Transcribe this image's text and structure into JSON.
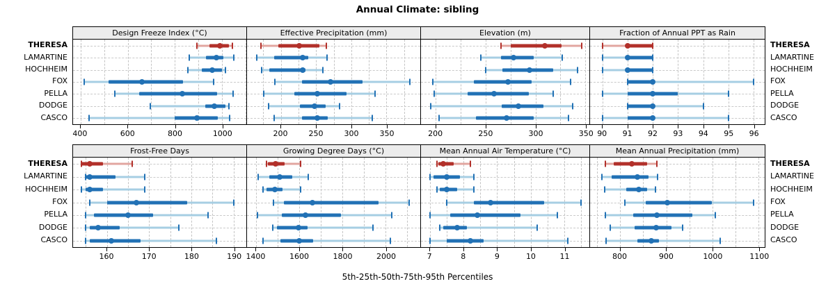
{
  "title": "Annual Climate: sibling",
  "caption": "5th-25th-50th-75th-95th Percentiles",
  "focus_series": "THERESA",
  "colors": {
    "focus": "#b2302a",
    "focus_light": "#e2a6a0",
    "other": "#2171b5",
    "other_light": "#a6cee3",
    "header_bg": "#ececec",
    "grid": "#c6c6c6",
    "border": "#000000"
  },
  "chart_data": {
    "type": "dotplot",
    "subtype": "percentile-whisker-trellis",
    "percentiles": [
      5,
      25,
      50,
      75,
      95
    ],
    "categories": [
      "THERESA",
      "LAMARTINE",
      "HOCHHEIM",
      "FOX",
      "PELLA",
      "DODGE",
      "CASCO"
    ],
    "layout": {
      "rows": 2,
      "cols": 4,
      "grid_on": true,
      "labels_both_sides": true
    },
    "panels": [
      {
        "title": "Design Freeze Index (°C)",
        "xlim": [
          368,
          1103
        ],
        "ticks": [
          400,
          600,
          800,
          1000
        ],
        "grid": [
          400,
          500,
          600,
          700,
          800,
          900,
          1000,
          1100
        ],
        "series": [
          {
            "name": "THERESA",
            "values": [
              893,
              947,
              991,
              1030,
              1043
            ]
          },
          {
            "name": "LAMARTINE",
            "values": [
              862,
              932,
              976,
              1007,
              1049
            ]
          },
          {
            "name": "HOCHHEIM",
            "values": [
              856,
              915,
              959,
              1000,
              1015
            ]
          },
          {
            "name": "FOX",
            "values": [
              415,
              518,
              659,
              833,
              964
            ]
          },
          {
            "name": "PELLA",
            "values": [
              545,
              649,
              830,
              978,
              1046
            ]
          },
          {
            "name": "DODGE",
            "values": [
              697,
              930,
              966,
              1015,
              1030
            ]
          },
          {
            "name": "CASCO",
            "values": [
              436,
              799,
              894,
              981,
              1032
            ]
          }
        ]
      },
      {
        "title": "Effective Precipitation (mm)",
        "xlim": [
          152,
          398
        ],
        "ticks": [
          200,
          250,
          300,
          350
        ],
        "grid": [
          175,
          200,
          225,
          250,
          275,
          300,
          325,
          350,
          375
        ],
        "series": [
          {
            "name": "THERESA",
            "values": [
              172,
              196,
              226,
              255,
              265
            ]
          },
          {
            "name": "LAMARTINE",
            "values": [
              166,
              191,
              231,
              239,
              266
            ]
          },
          {
            "name": "HOCHHEIM",
            "values": [
              173,
              184,
              231,
              235,
              260
            ]
          },
          {
            "name": "FOX",
            "values": [
              192,
              230,
              271,
              316,
              383
            ]
          },
          {
            "name": "PELLA",
            "values": [
              176,
              219,
              252,
              293,
              334
            ]
          },
          {
            "name": "DODGE",
            "values": [
              183,
              227,
              248,
              264,
              283
            ]
          },
          {
            "name": "CASCO",
            "values": [
              191,
              230,
              252,
              267,
              330
            ]
          }
        ]
      },
      {
        "title": "Elevation (m)",
        "xlim": [
          185,
          354
        ],
        "ticks": [
          200,
          250,
          300,
          350
        ],
        "grid": [
          200,
          225,
          250,
          275,
          300,
          325,
          350
        ],
        "series": [
          {
            "name": "THERESA",
            "values": [
              265,
              275,
              309,
              326,
              346
            ]
          },
          {
            "name": "LAMARTINE",
            "values": [
              245,
              265,
              278,
              298,
              327
            ]
          },
          {
            "name": "HOCHHEIM",
            "values": [
              250,
              267,
              294,
              318,
              342
            ]
          },
          {
            "name": "FOX",
            "values": [
              197,
              238,
              272,
              296,
              335
            ]
          },
          {
            "name": "PELLA",
            "values": [
              198,
              232,
              258,
              293,
              318
            ]
          },
          {
            "name": "DODGE",
            "values": [
              195,
              266,
              283,
              308,
              337
            ]
          },
          {
            "name": "CASCO",
            "values": [
              203,
              240,
              271,
              298,
              333
            ]
          }
        ]
      },
      {
        "title": "Fraction of Annual PPT as Rain",
        "xlim": [
          89.5,
          96.45
        ],
        "ticks": [
          90,
          91,
          92,
          93,
          94,
          95,
          96
        ],
        "grid": [
          90,
          91,
          92,
          93,
          94,
          95,
          96
        ],
        "series": [
          {
            "name": "THERESA",
            "values": [
              90,
              91,
              91,
              92,
              92
            ]
          },
          {
            "name": "LAMARTINE",
            "values": [
              90,
              91,
              91,
              92,
              92
            ]
          },
          {
            "name": "HOCHHEIM",
            "values": [
              90,
              91,
              91,
              92,
              92
            ]
          },
          {
            "name": "FOX",
            "values": [
              91,
              91,
              92,
              92,
              96
            ]
          },
          {
            "name": "PELLA",
            "values": [
              90,
              91,
              92,
              93,
              95
            ]
          },
          {
            "name": "DODGE",
            "values": [
              91,
              91,
              92,
              92,
              94
            ]
          },
          {
            "name": "CASCO",
            "values": [
              90,
              91,
              92,
              92,
              95
            ]
          }
        ]
      },
      {
        "title": "Frost-Free Days",
        "xlim": [
          152,
          193
        ],
        "ticks": [
          160,
          170,
          180,
          190
        ],
        "grid": [
          155,
          160,
          165,
          170,
          175,
          180,
          185,
          190
        ],
        "series": [
          {
            "name": "THERESA",
            "values": [
              154,
              154,
              156,
              159,
              166
            ]
          },
          {
            "name": "LAMARTINE",
            "values": [
              155,
              155,
              156,
              162,
              169
            ]
          },
          {
            "name": "HOCHHEIM",
            "values": [
              154,
              155,
              156,
              159,
              169
            ]
          },
          {
            "name": "FOX",
            "values": [
              156,
              160,
              167,
              179,
              190
            ]
          },
          {
            "name": "PELLA",
            "values": [
              155,
              157,
              165,
              171,
              184
            ]
          },
          {
            "name": "DODGE",
            "values": [
              155,
              156,
              158,
              163,
              177
            ]
          },
          {
            "name": "CASCO",
            "values": [
              155,
              156,
              161,
              168,
              186
            ]
          }
        ]
      },
      {
        "title": "Growing Degree Days (°C)",
        "xlim": [
          1357,
          2160
        ],
        "ticks": [
          1400,
          1600,
          1800,
          2000
        ],
        "grid": [
          1400,
          1500,
          1600,
          1700,
          1800,
          1900,
          2000,
          2100
        ],
        "series": [
          {
            "name": "THERESA",
            "values": [
              1446,
              1455,
              1488,
              1530,
              1606
            ]
          },
          {
            "name": "LAMARTINE",
            "values": [
              1409,
              1459,
              1510,
              1566,
              1641
            ]
          },
          {
            "name": "HOCHHEIM",
            "values": [
              1432,
              1448,
              1485,
              1523,
              1604
            ]
          },
          {
            "name": "FOX",
            "values": [
              1478,
              1529,
              1660,
              1968,
              2108
            ]
          },
          {
            "name": "PELLA",
            "values": [
              1405,
              1518,
              1628,
              1791,
              2029
            ]
          },
          {
            "name": "DODGE",
            "values": [
              1475,
              1496,
              1595,
              1636,
              1941
            ]
          },
          {
            "name": "CASCO",
            "values": [
              1430,
              1513,
              1600,
              1663,
              2022
            ]
          }
        ]
      },
      {
        "title": "Mean Annual Air Temperature (°C)",
        "xlim": [
          6.73,
          11.75
        ],
        "ticks": [
          7,
          8,
          9,
          10,
          11
        ],
        "grid": [
          7,
          7.5,
          8,
          8.5,
          9,
          9.5,
          10,
          10.5,
          11,
          11.5
        ],
        "series": [
          {
            "name": "THERESA",
            "values": [
              7.2,
              7.25,
              7.4,
              7.7,
              8.2
            ]
          },
          {
            "name": "LAMARTINE",
            "values": [
              7.0,
              7.1,
              7.5,
              7.9,
              8.3
            ]
          },
          {
            "name": "HOCHHEIM",
            "values": [
              7.2,
              7.3,
              7.5,
              7.8,
              8.3
            ]
          },
          {
            "name": "FOX",
            "values": [
              7.5,
              8.3,
              8.8,
              10.4,
              11.5
            ]
          },
          {
            "name": "PELLA",
            "values": [
              7.0,
              7.6,
              8.4,
              9.7,
              10.8
            ]
          },
          {
            "name": "DODGE",
            "values": [
              7.3,
              7.4,
              7.8,
              8.1,
              10.2
            ]
          },
          {
            "name": "CASCO",
            "values": [
              7.0,
              7.5,
              8.2,
              8.6,
              11.1
            ]
          }
        ]
      },
      {
        "title": "Mean Annual Precipitation (mm)",
        "xlim": [
          735,
          1113
        ],
        "ticks": [
          800,
          900,
          1000,
          1100
        ],
        "grid": [
          750,
          800,
          850,
          900,
          950,
          1000,
          1050,
          1100
        ],
        "series": [
          {
            "name": "THERESA",
            "values": [
              768,
              786,
              826,
              858,
              880
            ]
          },
          {
            "name": "LAMARTINE",
            "values": [
              761,
              781,
              838,
              861,
              881
            ]
          },
          {
            "name": "HOCHHEIM",
            "values": [
              767,
              814,
              840,
              858,
              877
            ]
          },
          {
            "name": "FOX",
            "values": [
              810,
              856,
              902,
              998,
              1089
            ]
          },
          {
            "name": "PELLA",
            "values": [
              768,
              829,
              879,
              956,
              1006
            ]
          },
          {
            "name": "DODGE",
            "values": [
              778,
              831,
              878,
              911,
              936
            ]
          },
          {
            "name": "CASCO",
            "values": [
              770,
              838,
              868,
              884,
              1016
            ]
          }
        ]
      }
    ]
  }
}
